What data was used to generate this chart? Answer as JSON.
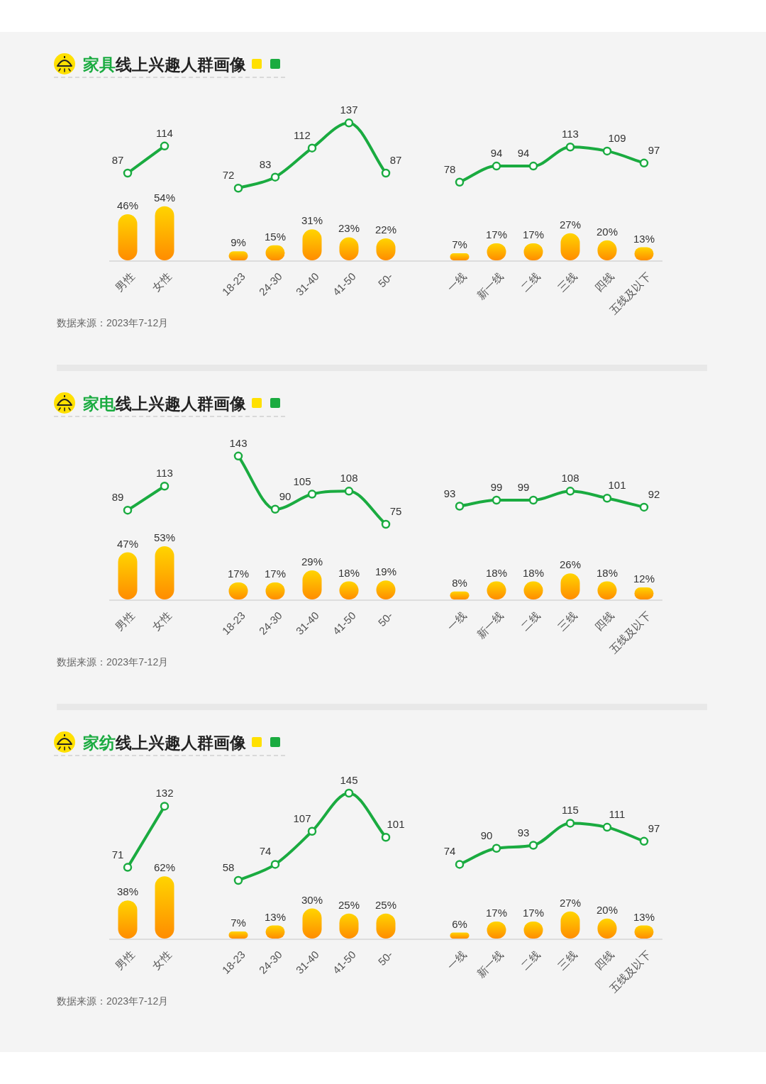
{
  "chart_data": [
    {
      "type": "bar",
      "title": "**家具**线上兴趣人群画像",
      "annotations": [
        "数据来源：2023年7-12月"
      ],
      "categories": [
        "男性",
        "女性"
      ],
      "series": [
        {
          "type": "bar",
          "color": "#ffb000",
          "values": [
            46,
            54
          ],
          "value_labels": [
            "46%",
            "54%"
          ]
        },
        {
          "type": "line",
          "marker": "circle",
          "color": "#1aab40",
          "values": [
            87,
            114
          ],
          "value_labels": [
            "87",
            "114"
          ]
        }
      ]
    },
    {
      "type": "bar",
      "categories": [
        "18-23",
        "24-30",
        "31-40",
        "41-50",
        "50-"
      ],
      "series": [
        {
          "type": "bar",
          "color": "#ffb000",
          "values": [
            9,
            15,
            31,
            23,
            22
          ],
          "value_labels": [
            "9%",
            "15%",
            "31%",
            "23%",
            "22%"
          ]
        },
        {
          "type": "line",
          "marker": "circle",
          "color": "#1aab40",
          "values": [
            72,
            83,
            112,
            137,
            87
          ],
          "value_labels": [
            "72",
            "83",
            "112",
            "137",
            "87"
          ]
        }
      ]
    },
    {
      "type": "bar",
      "categories": [
        "一线",
        "新一线",
        "二线",
        "三线",
        "四线",
        "五线及以下"
      ],
      "series": [
        {
          "type": "bar",
          "color": "#ffb000",
          "values": [
            7,
            17,
            17,
            27,
            20,
            13
          ],
          "value_labels": [
            "7%",
            "17%",
            "17%",
            "27%",
            "20%",
            "13%"
          ]
        },
        {
          "type": "line",
          "marker": "circle",
          "color": "#1aab40",
          "values": [
            78,
            94,
            94,
            113,
            109,
            97
          ],
          "value_labels": [
            "78",
            "94",
            "94",
            "113",
            "109",
            "97"
          ]
        }
      ]
    },
    {
      "type": "bar",
      "title": "**家电**线上兴趣人群画像",
      "annotations": [
        "数据来源：2023年7-12月"
      ],
      "categories": [
        "男性",
        "女性"
      ],
      "series": [
        {
          "type": "bar",
          "color": "#ffb000",
          "values": [
            47,
            53
          ],
          "value_labels": [
            "47%",
            "53%"
          ]
        },
        {
          "type": "line",
          "marker": "circle",
          "color": "#1aab40",
          "values": [
            89,
            113
          ],
          "value_labels": [
            "89",
            "113"
          ]
        }
      ]
    },
    {
      "type": "bar",
      "categories": [
        "18-23",
        "24-30",
        "31-40",
        "41-50",
        "50-"
      ],
      "series": [
        {
          "type": "bar",
          "color": "#ffb000",
          "values": [
            17,
            17,
            29,
            18,
            19
          ],
          "value_labels": [
            "17%",
            "17%",
            "29%",
            "18%",
            "19%"
          ]
        },
        {
          "type": "line",
          "marker": "circle",
          "color": "#1aab40",
          "values": [
            143,
            90,
            105,
            108,
            75
          ],
          "value_labels": [
            "143",
            "90",
            "105",
            "108",
            "75"
          ]
        }
      ]
    },
    {
      "type": "bar",
      "categories": [
        "一线",
        "新一线",
        "二线",
        "三线",
        "四线",
        "五线及以下"
      ],
      "series": [
        {
          "type": "bar",
          "color": "#ffb000",
          "values": [
            8,
            18,
            18,
            26,
            18,
            12
          ],
          "value_labels": [
            "8%",
            "18%",
            "18%",
            "26%",
            "18%",
            "12%"
          ]
        },
        {
          "type": "line",
          "marker": "circle",
          "color": "#1aab40",
          "values": [
            93,
            99,
            99,
            108,
            101,
            92
          ],
          "value_labels": [
            "93",
            "99",
            "99",
            "108",
            "101",
            "92"
          ]
        }
      ]
    },
    {
      "type": "bar",
      "title": "**家纺**线上兴趣人群画像",
      "annotations": [
        "数据来源：2023年7-12月"
      ],
      "categories": [
        "男性",
        "女性"
      ],
      "series": [
        {
          "type": "bar",
          "color": "#ffb000",
          "values": [
            38,
            62
          ],
          "value_labels": [
            "38%",
            "62%"
          ]
        },
        {
          "type": "line",
          "marker": "circle",
          "color": "#1aab40",
          "values": [
            71,
            132
          ],
          "value_labels": [
            "71",
            "132"
          ]
        }
      ]
    },
    {
      "type": "bar",
      "categories": [
        "18-23",
        "24-30",
        "31-40",
        "41-50",
        "50-"
      ],
      "series": [
        {
          "type": "bar",
          "color": "#ffb000",
          "values": [
            7,
            13,
            30,
            25,
            25
          ],
          "value_labels": [
            "7%",
            "13%",
            "30%",
            "25%",
            "25%"
          ]
        },
        {
          "type": "line",
          "marker": "circle",
          "color": "#1aab40",
          "values": [
            58,
            74,
            107,
            145,
            101
          ],
          "value_labels": [
            "58",
            "74",
            "107",
            "145",
            "101"
          ]
        }
      ]
    },
    {
      "type": "bar",
      "categories": [
        "一线",
        "新一线",
        "二线",
        "三线",
        "四线",
        "五线及以下"
      ],
      "series": [
        {
          "type": "bar",
          "color": "#ffb000",
          "values": [
            6,
            17,
            17,
            27,
            20,
            13
          ],
          "value_labels": [
            "6%",
            "17%",
            "17%",
            "27%",
            "20%",
            "13%"
          ]
        },
        {
          "type": "line",
          "marker": "circle",
          "color": "#1aab40",
          "values": [
            74,
            90,
            93,
            115,
            111,
            97
          ],
          "value_labels": [
            "74",
            "90",
            "93",
            "115",
            "111",
            "97"
          ]
        }
      ]
    }
  ]
}
